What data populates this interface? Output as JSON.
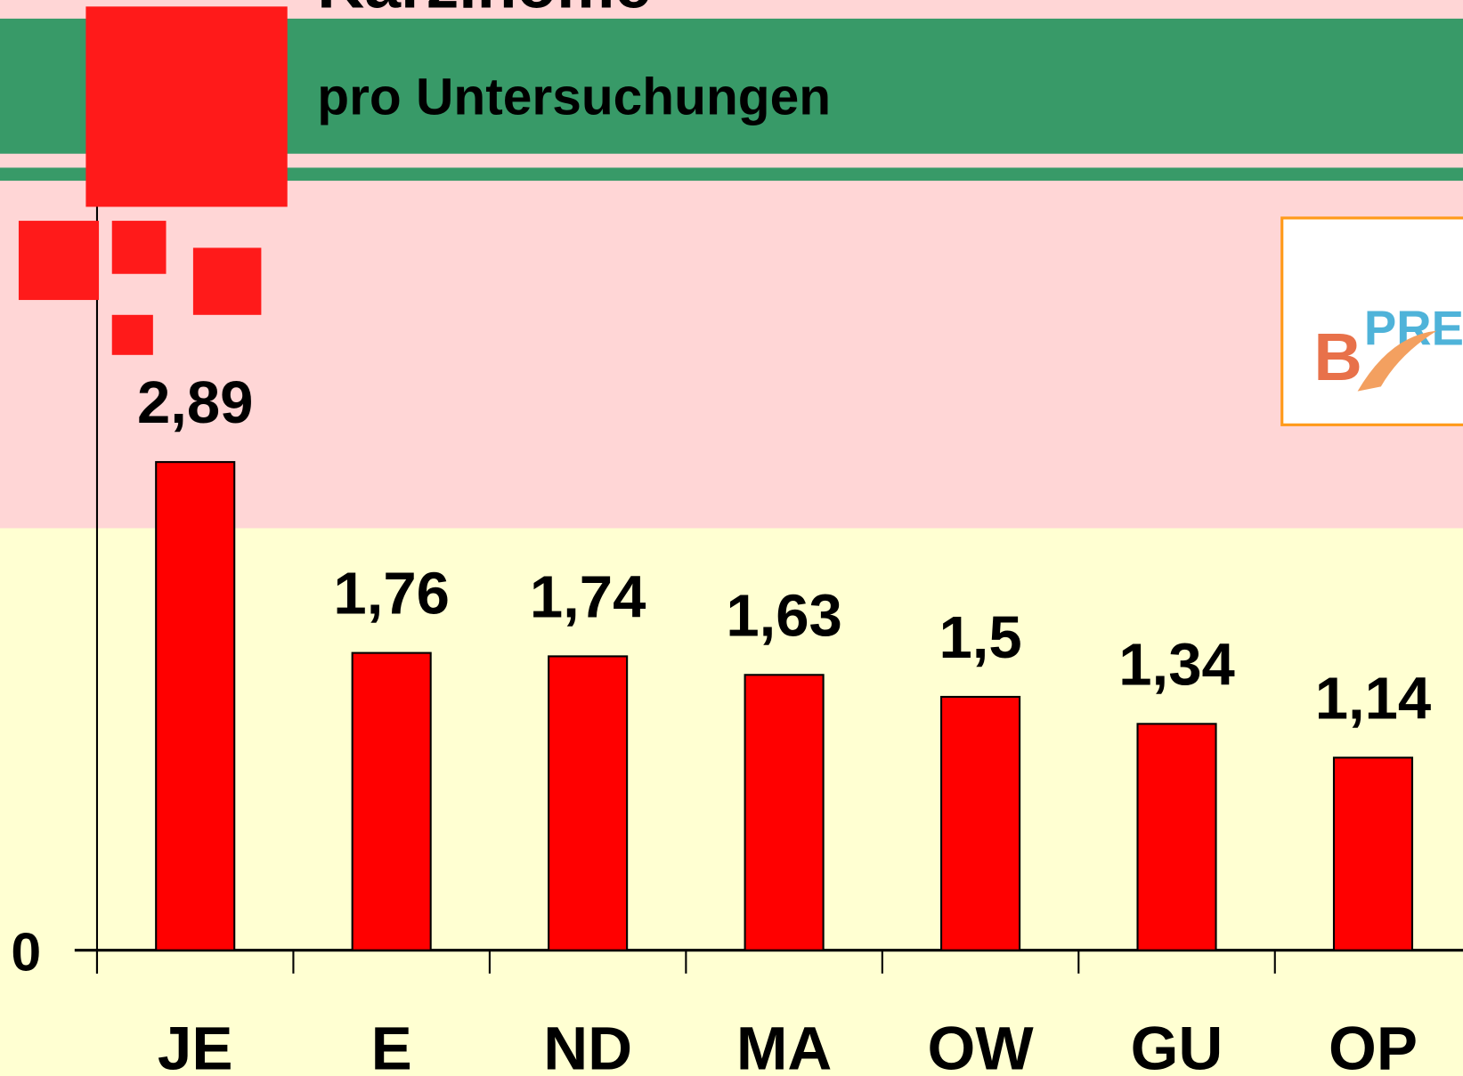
{
  "chart_data": {
    "type": "bar",
    "title": "Karzinome",
    "subtitle": "pro Untersuchungen",
    "logo": {
      "letter": "B",
      "text": "PRE"
    },
    "categories": [
      "JE",
      "E",
      "ND",
      "MA",
      "OW",
      "GU",
      "OP"
    ],
    "values": [
      2.89,
      1.76,
      1.74,
      1.63,
      1.5,
      1.34,
      1.14
    ],
    "value_labels": [
      "2,89",
      "1,76",
      "1,74",
      "1,63",
      "1,5",
      "1,34",
      "1,14"
    ],
    "color": "#ff0000",
    "ylim": [
      0,
      4.5
    ],
    "yticks": [
      0
    ]
  }
}
